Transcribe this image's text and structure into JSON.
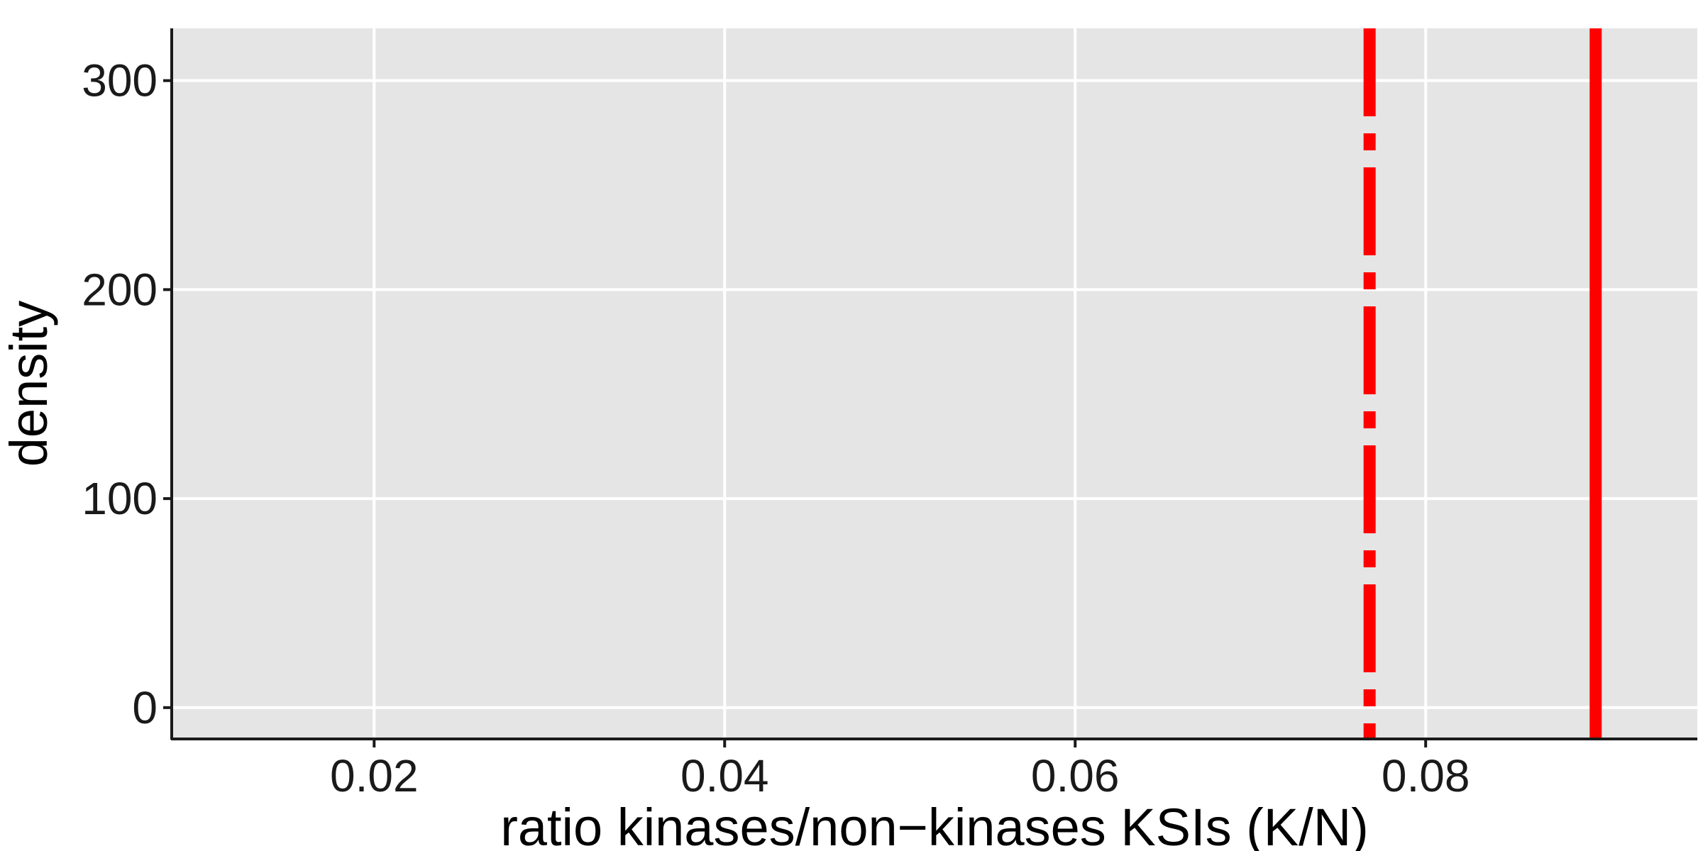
{
  "chart_data": {
    "type": "line",
    "title": "",
    "xlabel": "ratio kinases/non−kinases KSIs (K/N)",
    "ylabel": "density",
    "xlim": [
      0.00845,
      0.0955
    ],
    "ylim": [
      -15,
      325
    ],
    "x_ticks": [
      {
        "value": 0.02,
        "label": "0.02"
      },
      {
        "value": 0.04,
        "label": "0.04"
      },
      {
        "value": 0.06,
        "label": "0.06"
      },
      {
        "value": 0.08,
        "label": "0.08"
      }
    ],
    "y_ticks": [
      {
        "value": 0,
        "label": "0"
      },
      {
        "value": 100,
        "label": "100"
      },
      {
        "value": 200,
        "label": "200"
      },
      {
        "value": 300,
        "label": "300"
      }
    ],
    "grid": true,
    "panel_background": "#e5e5e5",
    "grid_color": "#ffffff",
    "reference_lines": [
      {
        "x": 0.0768,
        "style": "dashdot",
        "color": "#ff0000"
      },
      {
        "x": 0.0897,
        "style": "solid",
        "color": "#ff0000"
      }
    ],
    "series": []
  }
}
